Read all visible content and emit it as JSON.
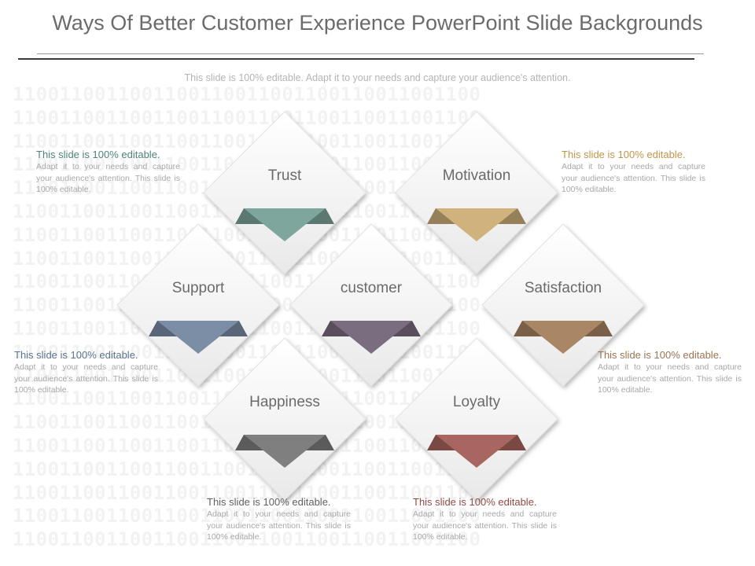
{
  "title": "Ways Of Better Customer Experience PowerPoint Slide Backgrounds",
  "subtitle": "This slide is 100% editable. Adapt it to your needs and capture your audience's attention.",
  "background_pattern": "1100110011001100110011001100110011001100",
  "nodes": [
    {
      "label": "Trust",
      "color": "#7fa69d"
    },
    {
      "label": "Motivation",
      "color": "#cfb27c"
    },
    {
      "label": "Support",
      "color": "#7b8ea5"
    },
    {
      "label": "customer",
      "color": "#7b6d80"
    },
    {
      "label": "Satisfaction",
      "color": "#a98664"
    },
    {
      "label": "Happiness",
      "color": "#7f7f7f"
    },
    {
      "label": "Loyalty",
      "color": "#a9655f"
    }
  ],
  "texts": [
    {
      "heading": "This slide is 100% editable.",
      "body": "Adapt it to your needs and capture your audience's attention. This slide is 100% editable.",
      "color": "#4f837a"
    },
    {
      "heading": "This slide is 100% editable.",
      "body": "Adapt it to your needs and capture your audience's attention. This slide is 100% editable.",
      "color": "#c0964a"
    },
    {
      "heading": "This slide is 100% editable.",
      "body": "Adapt it to your needs and capture your audience's attention. This slide is 100% editable.",
      "color": "#5b7490"
    },
    {
      "heading": "This slide is 100% editable.",
      "body": "Adapt it to your needs and capture your audience's attention. This slide is 100% editable.",
      "color": "#9a7452"
    },
    {
      "heading": "This slide is 100% editable.",
      "body": "Adapt it to your needs and capture your audience's attention. This slide is 100% editable.",
      "color": "#606060"
    },
    {
      "heading": "This slide is 100% editable.",
      "body": "Adapt it to your needs and capture your audience's attention. This slide is 100% editable.",
      "color": "#8f4a45"
    }
  ]
}
